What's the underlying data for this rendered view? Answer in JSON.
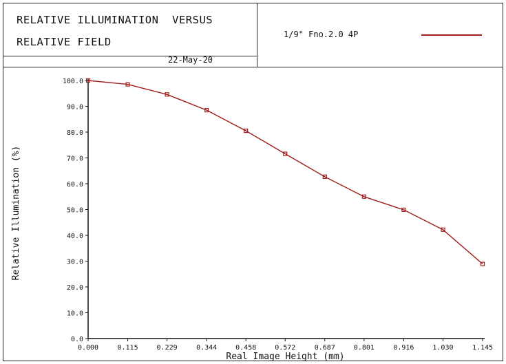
{
  "header": {
    "title_line1": "RELATIVE ILLUMINATION  VERSUS",
    "title_line2": "RELATIVE FIELD",
    "date": "22-May-20",
    "legend_label": "1/9\" Fno.2.0 4P",
    "line_color": "#a01c1c"
  },
  "chart_data": {
    "type": "line",
    "title": "RELATIVE ILLUMINATION VERSUS RELATIVE FIELD",
    "xlabel": "Real Image Height (mm)",
    "ylabel": "Relative Illumination (%)",
    "xlim": [
      0,
      1.145
    ],
    "ylim": [
      0,
      100
    ],
    "x_ticks": [
      "0.000",
      "0.115",
      "0.229",
      "0.344",
      "0.458",
      "0.572",
      "0.687",
      "0.801",
      "0.916",
      "1.030",
      "1.145"
    ],
    "y_ticks": [
      "0.0",
      "10.0",
      "20.0",
      "30.0",
      "40.0",
      "50.0",
      "60.0",
      "70.0",
      "80.0",
      "90.0",
      "100.0"
    ],
    "grid": false,
    "series": [
      {
        "name": "1/9\" Fno.2.0 4P",
        "color": "#a01c1c",
        "x": [
          0.0,
          0.115,
          0.229,
          0.344,
          0.458,
          0.572,
          0.687,
          0.801,
          0.916,
          1.03,
          1.145
        ],
        "y": [
          100.0,
          98.5,
          94.6,
          88.5,
          80.5,
          71.6,
          62.7,
          55.0,
          49.9,
          42.2,
          28.9
        ]
      }
    ]
  }
}
